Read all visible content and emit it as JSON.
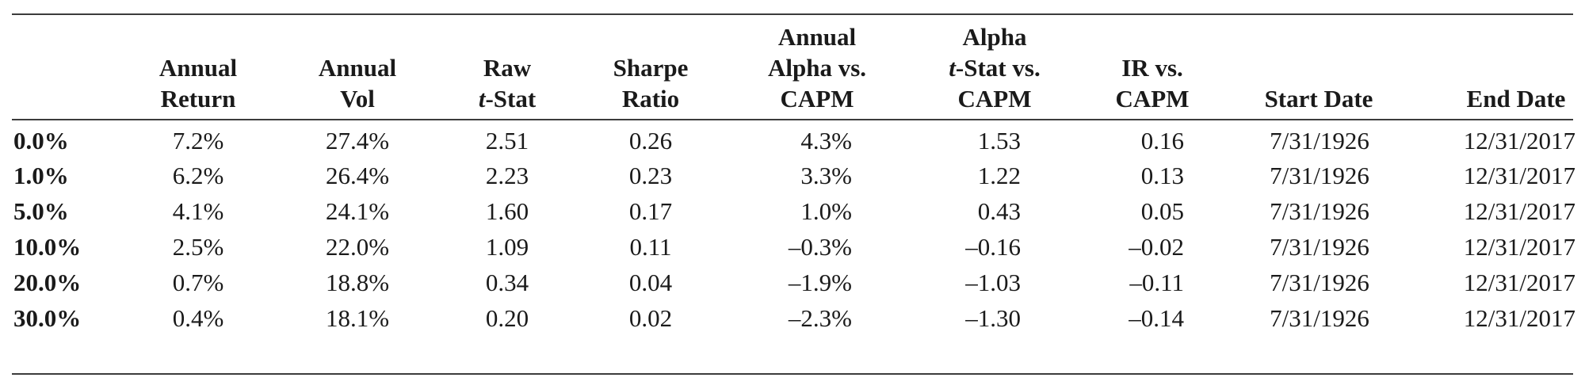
{
  "table": {
    "headers": [
      [
        "",
        "Annual",
        "Return"
      ],
      [
        "",
        "Annual",
        "Vol"
      ],
      [
        "",
        "Raw",
        "t-Stat"
      ],
      [
        "",
        "Sharpe",
        "Ratio"
      ],
      [
        "Annual",
        "Alpha vs.",
        "CAPM"
      ],
      [
        "Alpha",
        "t-Stat vs.",
        "CAPM"
      ],
      [
        "",
        "IR vs.",
        "CAPM"
      ],
      [
        "",
        "",
        "Start Date"
      ],
      [
        "",
        "",
        "End Date"
      ]
    ],
    "rows": [
      {
        "label": "0.0%",
        "cells": [
          "7.2%",
          "27.4%",
          "2.51",
          "0.26",
          "4.3%",
          "1.53",
          "0.16",
          "7/31/1926",
          "12/31/2017"
        ]
      },
      {
        "label": "1.0%",
        "cells": [
          "6.2%",
          "26.4%",
          "2.23",
          "0.23",
          "3.3%",
          "1.22",
          "0.13",
          "7/31/1926",
          "12/31/2017"
        ]
      },
      {
        "label": "5.0%",
        "cells": [
          "4.1%",
          "24.1%",
          "1.60",
          "0.17",
          "1.0%",
          "0.43",
          "0.05",
          "7/31/1926",
          "12/31/2017"
        ]
      },
      {
        "label": "10.0%",
        "cells": [
          "2.5%",
          "22.0%",
          "1.09",
          "0.11",
          "–0.3%",
          "–0.16",
          "–0.02",
          "7/31/1926",
          "12/31/2017"
        ]
      },
      {
        "label": "20.0%",
        "cells": [
          "0.7%",
          "18.8%",
          "0.34",
          "0.04",
          "–1.9%",
          "–1.03",
          "–0.11",
          "7/31/1926",
          "12/31/2017"
        ]
      },
      {
        "label": "30.0%",
        "cells": [
          "0.4%",
          "18.1%",
          "0.20",
          "0.02",
          "–2.3%",
          "–1.30",
          "–0.14",
          "7/31/1926",
          "12/31/2017"
        ]
      }
    ]
  }
}
